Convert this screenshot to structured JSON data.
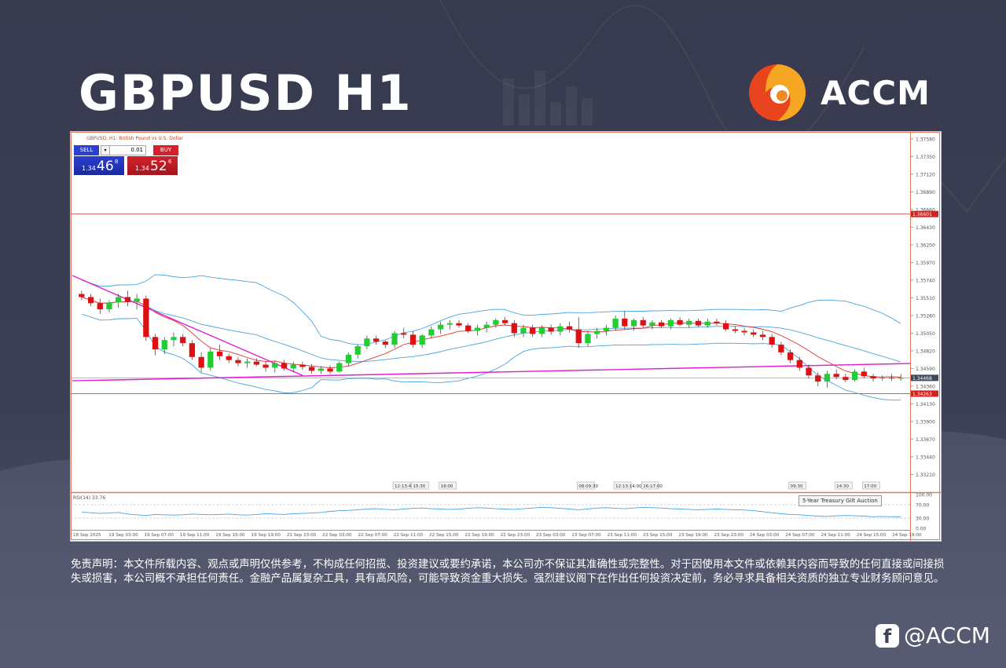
{
  "page": {
    "title": "GBPUSD H1",
    "logo_text": "ACCM",
    "disclaimer": "免责声明：本文件所载内容、观点或声明仅供参考，不构成任何招揽、投资建议或要约承诺，本公司亦不保证其准确性或完整性。对于因使用本文件或依赖其内容而导致的任何直接或间接损失或损害，本公司概不承担任何责任。金融产品属复杂工具，具有高风险，可能导致资金重大损失。强烈建议阁下在作出任何投资决定前，务必寻求具备相关资质的独立专业财务顾问意见。",
    "social_handle": "@ACCM",
    "social_icon": "facebook-icon",
    "colors": {
      "background": "#3f4256",
      "bull_candle": "#22cc33",
      "bear_candle": "#dd1111",
      "bollinger": "#4aa3df",
      "moving_average": "#e03030",
      "trendline": "#e020d0",
      "horizontal_level": "#d06060"
    }
  },
  "chart_data": {
    "type": "candlestick",
    "symbol_label": "GBPUSD, H1:  British Pound vs U.S. Dollar",
    "trade_panel": {
      "sell_label": "SELL",
      "buy_label": "BUY",
      "lot": "0.01",
      "sell_price_prefix": "1.34",
      "sell_price_big": "46",
      "sell_price_sup": "8",
      "buy_price_prefix": "1.34",
      "buy_price_big": "52",
      "buy_price_sup": "6"
    },
    "y_ticks": [
      "1.37580",
      "1.37350",
      "1.37120",
      "1.36890",
      "1.36660",
      "1.36430",
      "1.36200",
      "1.35970",
      "1.35740",
      "1.35510",
      "1.35280",
      "1.35050",
      "1.34820",
      "1.34590",
      "1.34360",
      "1.34130",
      "1.33900",
      "1.33670",
      "1.33440",
      "1.33210"
    ],
    "ylim": [
      1.3298,
      1.3765
    ],
    "levels": [
      {
        "value": 1.36601,
        "label": "1.36601"
      },
      {
        "value": 1.34263,
        "label": "1.34263"
      }
    ],
    "current_price": {
      "value": 1.34468,
      "label": "1.34468"
    },
    "x_ticks": [
      "18 Sep 2025",
      "19 Sep 03:00",
      "19 Sep 07:00",
      "19 Sep 11:00",
      "19 Sep 15:00",
      "19 Sep 19:00",
      "21 Sep 23:00",
      "22 Sep 03:00",
      "22 Sep 07:00",
      "22 Sep 11:00",
      "22 Sep 15:00",
      "22 Sep 19:00",
      "22 Sep 23:00",
      "23 Sep 03:00",
      "23 Sep 07:00",
      "23 Sep 11:00",
      "23 Sep 15:00",
      "23 Sep 19:00",
      "23 Sep 23:00",
      "24 Sep 03:00",
      "24 Sep 07:00",
      "24 Sep 11:00",
      "24 Sep 15:00",
      "24 Sep 19:00"
    ],
    "event_markers": [
      {
        "bar": 34,
        "label": "12:13:45"
      },
      {
        "bar": 36,
        "label": "15:30"
      },
      {
        "bar": 39,
        "label": "18:00"
      },
      {
        "bar": 54,
        "label": "08:09:30"
      },
      {
        "bar": 58,
        "label": "12:13:14:00"
      },
      {
        "bar": 61,
        "label": "16:17:00"
      },
      {
        "bar": 77,
        "label": "09:30"
      },
      {
        "bar": 82,
        "label": "14:30"
      },
      {
        "bar": 85,
        "label": "17:00"
      }
    ],
    "tooltip": "5-Year Treasury Gilt Auction",
    "rsi": {
      "label": "RSI(14) 33.76",
      "levels": [
        "100.00",
        "70.00",
        "30.00",
        "0.00"
      ],
      "values": [
        48,
        46,
        44,
        45,
        47,
        42,
        40,
        38,
        41,
        40,
        39,
        40,
        42,
        41,
        40,
        41,
        42,
        40,
        39,
        41,
        43,
        42,
        41,
        43,
        44,
        45,
        47,
        50,
        52,
        53,
        55,
        57,
        58,
        56,
        55,
        57,
        59,
        60,
        58,
        57,
        56,
        57,
        59,
        61,
        60,
        58,
        57,
        56,
        58,
        60,
        62,
        61,
        59,
        57,
        55,
        57,
        60,
        61,
        59,
        58,
        60,
        62,
        61,
        60,
        58,
        57,
        56,
        55,
        56,
        57,
        56,
        55,
        54,
        52,
        49,
        46,
        43,
        41,
        40,
        38,
        36,
        35,
        37,
        38,
        37,
        36,
        34,
        35,
        34,
        33.76
      ]
    },
    "candles": [
      [
        1.3556,
        1.356,
        1.3548,
        1.3552
      ],
      [
        1.3552,
        1.3556,
        1.354,
        1.3544
      ],
      [
        1.3544,
        1.355,
        1.353,
        1.3536
      ],
      [
        1.3536,
        1.3548,
        1.3532,
        1.3545
      ],
      [
        1.3545,
        1.3556,
        1.3538,
        1.3552
      ],
      [
        1.3552,
        1.356,
        1.354,
        1.3546
      ],
      [
        1.3546,
        1.3556,
        1.3536,
        1.355
      ],
      [
        1.355,
        1.3554,
        1.3495,
        1.35
      ],
      [
        1.35,
        1.3504,
        1.3476,
        1.3484
      ],
      [
        1.3484,
        1.35,
        1.3478,
        1.3496
      ],
      [
        1.3496,
        1.3506,
        1.3488,
        1.35
      ],
      [
        1.35,
        1.3504,
        1.3488,
        1.3492
      ],
      [
        1.3492,
        1.3496,
        1.347,
        1.3474
      ],
      [
        1.3474,
        1.348,
        1.3454,
        1.346
      ],
      [
        1.346,
        1.3486,
        1.3456,
        1.3481
      ],
      [
        1.3481,
        1.349,
        1.347,
        1.3475
      ],
      [
        1.3475,
        1.3478,
        1.3466,
        1.347
      ],
      [
        1.347,
        1.3474,
        1.3462,
        1.3466
      ],
      [
        1.3466,
        1.3472,
        1.346,
        1.3468
      ],
      [
        1.3468,
        1.3472,
        1.3462,
        1.3464
      ],
      [
        1.3464,
        1.3468,
        1.3455,
        1.346
      ],
      [
        1.346,
        1.3469,
        1.3454,
        1.3466
      ],
      [
        1.3466,
        1.347,
        1.3456,
        1.3459
      ],
      [
        1.3459,
        1.3468,
        1.3454,
        1.3464
      ],
      [
        1.3464,
        1.3468,
        1.3457,
        1.3461
      ],
      [
        1.3461,
        1.3465,
        1.3452,
        1.3456
      ],
      [
        1.3456,
        1.3462,
        1.3452,
        1.3459
      ],
      [
        1.3459,
        1.3463,
        1.3452,
        1.3455
      ],
      [
        1.3455,
        1.3468,
        1.3454,
        1.3466
      ],
      [
        1.3466,
        1.348,
        1.3462,
        1.3477
      ],
      [
        1.3477,
        1.349,
        1.3472,
        1.3488
      ],
      [
        1.3488,
        1.3502,
        1.3484,
        1.3498
      ],
      [
        1.3498,
        1.3502,
        1.349,
        1.3494
      ],
      [
        1.3494,
        1.3496,
        1.3486,
        1.349
      ],
      [
        1.349,
        1.3508,
        1.3486,
        1.3505
      ],
      [
        1.3505,
        1.3512,
        1.3498,
        1.3503
      ],
      [
        1.3503,
        1.3508,
        1.3486,
        1.349
      ],
      [
        1.349,
        1.3504,
        1.3486,
        1.3502
      ],
      [
        1.3502,
        1.3514,
        1.3498,
        1.351
      ],
      [
        1.351,
        1.352,
        1.3504,
        1.3516
      ],
      [
        1.3516,
        1.3522,
        1.351,
        1.3518
      ],
      [
        1.3518,
        1.3522,
        1.3512,
        1.3515
      ],
      [
        1.3515,
        1.3518,
        1.3505,
        1.3508
      ],
      [
        1.3508,
        1.3516,
        1.3502,
        1.3512
      ],
      [
        1.3512,
        1.352,
        1.3506,
        1.3516
      ],
      [
        1.3516,
        1.3524,
        1.3512,
        1.3522
      ],
      [
        1.3522,
        1.3526,
        1.3515,
        1.3518
      ],
      [
        1.3518,
        1.3522,
        1.35,
        1.3505
      ],
      [
        1.3505,
        1.3516,
        1.35,
        1.3512
      ],
      [
        1.3512,
        1.3516,
        1.35,
        1.3504
      ],
      [
        1.3504,
        1.3515,
        1.35,
        1.3512
      ],
      [
        1.3512,
        1.3516,
        1.3503,
        1.3507
      ],
      [
        1.3507,
        1.3518,
        1.3502,
        1.3514
      ],
      [
        1.3514,
        1.352,
        1.3506,
        1.351
      ],
      [
        1.351,
        1.3526,
        1.3486,
        1.3492
      ],
      [
        1.3492,
        1.3508,
        1.3488,
        1.3504
      ],
      [
        1.3504,
        1.3512,
        1.3498,
        1.3508
      ],
      [
        1.3508,
        1.3516,
        1.3502,
        1.3512
      ],
      [
        1.3512,
        1.3528,
        1.3508,
        1.3524
      ],
      [
        1.3524,
        1.3534,
        1.351,
        1.3514
      ],
      [
        1.3514,
        1.3524,
        1.3508,
        1.3522
      ],
      [
        1.3522,
        1.3526,
        1.3512,
        1.3515
      ],
      [
        1.3515,
        1.3522,
        1.351,
        1.3519
      ],
      [
        1.3519,
        1.3522,
        1.3512,
        1.3514
      ],
      [
        1.3514,
        1.3524,
        1.351,
        1.3522
      ],
      [
        1.3522,
        1.3526,
        1.3514,
        1.3516
      ],
      [
        1.3516,
        1.3524,
        1.3512,
        1.3521
      ],
      [
        1.3521,
        1.3524,
        1.3513,
        1.3515
      ],
      [
        1.3515,
        1.3524,
        1.3512,
        1.352
      ],
      [
        1.352,
        1.3524,
        1.3515,
        1.3518
      ],
      [
        1.3518,
        1.3522,
        1.3508,
        1.351
      ],
      [
        1.351,
        1.3514,
        1.3505,
        1.3508
      ],
      [
        1.3508,
        1.3512,
        1.3502,
        1.3506
      ],
      [
        1.3506,
        1.351,
        1.35,
        1.3503
      ],
      [
        1.3503,
        1.3508,
        1.3496,
        1.35
      ],
      [
        1.35,
        1.3504,
        1.3486,
        1.349
      ],
      [
        1.349,
        1.3494,
        1.3476,
        1.348
      ],
      [
        1.348,
        1.3484,
        1.3466,
        1.347
      ],
      [
        1.347,
        1.3474,
        1.3456,
        1.346
      ],
      [
        1.346,
        1.3464,
        1.3446,
        1.345
      ],
      [
        1.345,
        1.3454,
        1.3436,
        1.3442
      ],
      [
        1.3442,
        1.3456,
        1.3434,
        1.3452
      ],
      [
        1.3452,
        1.3458,
        1.3445,
        1.3448
      ],
      [
        1.3448,
        1.3452,
        1.3441,
        1.3444
      ],
      [
        1.3444,
        1.3458,
        1.3442,
        1.3455
      ],
      [
        1.3455,
        1.346,
        1.3446,
        1.3449
      ],
      [
        1.3449,
        1.3452,
        1.3442,
        1.3446
      ],
      [
        1.3446,
        1.345,
        1.3443,
        1.3447
      ],
      [
        1.3447,
        1.3452,
        1.3443,
        1.3446
      ],
      [
        1.3446,
        1.3452,
        1.3443,
        1.34468
      ]
    ]
  }
}
